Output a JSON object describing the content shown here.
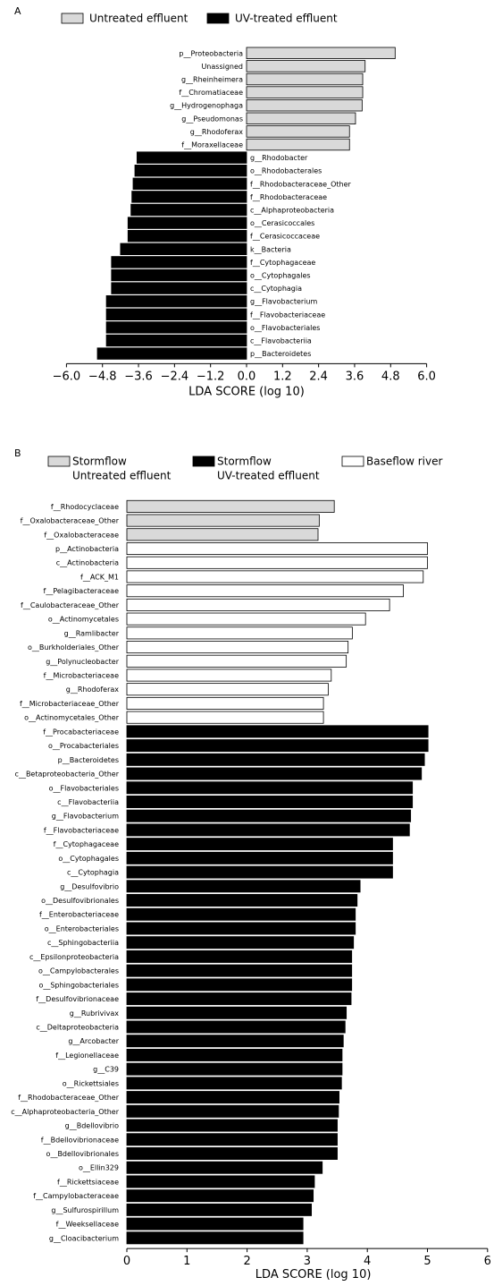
{
  "colors": {
    "untreated": "#d9d9d9",
    "uv": "#000000",
    "baseflow": "#ffffff",
    "stroke": "#000000"
  },
  "chart_data": [
    {
      "panel": "A",
      "type": "bar",
      "orientation": "horizontal",
      "xlabel": "LDA SCORE (log 10)",
      "xlim": [
        -6.0,
        6.0
      ],
      "xticks": [
        "−6.0",
        "−4.8",
        "−3.6",
        "−2.4",
        "−1.2",
        "0.0",
        "1.2",
        "2.4",
        "3.6",
        "4.8",
        "6.0"
      ],
      "legend": [
        {
          "name": "Untreated effluent",
          "group": "untreated"
        },
        {
          "name": "UV-treated effluent",
          "group": "uv"
        }
      ],
      "bars": [
        {
          "label": "p__Proteobacteria",
          "value": 4.95,
          "group": "untreated"
        },
        {
          "label": "Unassigned",
          "value": 3.95,
          "group": "untreated"
        },
        {
          "label": "g__Rheinheimera",
          "value": 3.87,
          "group": "untreated"
        },
        {
          "label": "f__Chromatiaceae",
          "value": 3.87,
          "group": "untreated"
        },
        {
          "label": "g__Hydrogenophaga",
          "value": 3.85,
          "group": "untreated"
        },
        {
          "label": "g__Pseudomonas",
          "value": 3.63,
          "group": "untreated"
        },
        {
          "label": "g__Rhodoferax",
          "value": 3.43,
          "group": "untreated"
        },
        {
          "label": "f__Moraxellaceae",
          "value": 3.43,
          "group": "untreated"
        },
        {
          "label": "g__Rhodobacter",
          "value": -3.65,
          "group": "uv"
        },
        {
          "label": "o__Rhodobacterales",
          "value": -3.72,
          "group": "uv"
        },
        {
          "label": "f__Rhodobacteraceae_Other",
          "value": -3.78,
          "group": "uv"
        },
        {
          "label": "f__Rhodobacteraceae",
          "value": -3.82,
          "group": "uv"
        },
        {
          "label": "c__Alphaproteobacteria",
          "value": -3.85,
          "group": "uv"
        },
        {
          "label": "o__Cerasicoccales",
          "value": -3.95,
          "group": "uv"
        },
        {
          "label": "f__Cerasicoccaceae",
          "value": -3.95,
          "group": "uv"
        },
        {
          "label": "k__Bacteria",
          "value": -4.2,
          "group": "uv"
        },
        {
          "label": "f__Cytophagaceae",
          "value": -4.5,
          "group": "uv"
        },
        {
          "label": "o__Cytophagales",
          "value": -4.5,
          "group": "uv"
        },
        {
          "label": "c__Cytophagia",
          "value": -4.5,
          "group": "uv"
        },
        {
          "label": "g__Flavobacterium",
          "value": -4.67,
          "group": "uv"
        },
        {
          "label": "f__Flavobacteriaceae",
          "value": -4.67,
          "group": "uv"
        },
        {
          "label": "o__Flavobacteriales",
          "value": -4.67,
          "group": "uv"
        },
        {
          "label": "c__Flavobacteriia",
          "value": -4.67,
          "group": "uv"
        },
        {
          "label": "p__Bacteroidetes",
          "value": -4.97,
          "group": "uv"
        }
      ]
    },
    {
      "panel": "B",
      "type": "bar",
      "orientation": "horizontal",
      "xlabel": "LDA SCORE (log 10)",
      "xlim": [
        0,
        6
      ],
      "xticks": [
        "0",
        "1",
        "2",
        "3",
        "4",
        "5",
        "6"
      ],
      "legend": [
        {
          "name": "Stormflow",
          "name2": "Untreated effluent",
          "group": "untreated"
        },
        {
          "name": "Stormflow",
          "name2": "UV-treated effluent",
          "group": "uv"
        },
        {
          "name": "Baseflow river",
          "name2": "",
          "group": "baseflow"
        }
      ],
      "bars": [
        {
          "label": "f__Rhodocyclaceae",
          "value": 3.45,
          "group": "untreated"
        },
        {
          "label": "f__Oxalobacteraceae_Other",
          "value": 3.2,
          "group": "untreated"
        },
        {
          "label": "f__Oxalobacteraceae",
          "value": 3.18,
          "group": "untreated"
        },
        {
          "label": "p__Actinobacteria",
          "value": 5.0,
          "group": "baseflow"
        },
        {
          "label": "c__Actinobacteria",
          "value": 5.0,
          "group": "baseflow"
        },
        {
          "label": "f__ACK_M1",
          "value": 4.93,
          "group": "baseflow"
        },
        {
          "label": "f__Pelagibacteraceae",
          "value": 4.6,
          "group": "baseflow"
        },
        {
          "label": "f__Caulobacteraceae_Other",
          "value": 4.37,
          "group": "baseflow"
        },
        {
          "label": "o__Actinomycetales",
          "value": 3.97,
          "group": "baseflow"
        },
        {
          "label": "g__Ramlibacter",
          "value": 3.75,
          "group": "baseflow"
        },
        {
          "label": "o__Burkholderiales_Other",
          "value": 3.68,
          "group": "baseflow"
        },
        {
          "label": "g__Polynucleobacter",
          "value": 3.65,
          "group": "baseflow"
        },
        {
          "label": "f__Microbacteriaceae",
          "value": 3.4,
          "group": "baseflow"
        },
        {
          "label": "g__Rhodoferax",
          "value": 3.35,
          "group": "baseflow"
        },
        {
          "label": "f__Microbacteriaceae_Other",
          "value": 3.27,
          "group": "baseflow"
        },
        {
          "label": "o__Actinomycetales_Other",
          "value": 3.27,
          "group": "baseflow"
        },
        {
          "label": "f__Procabacteriaceae",
          "value": 5.01,
          "group": "uv"
        },
        {
          "label": "o__Procabacteriales",
          "value": 5.01,
          "group": "uv"
        },
        {
          "label": "p__Bacteroidetes",
          "value": 4.95,
          "group": "uv"
        },
        {
          "label": "c__Betaproteobacteria_Other",
          "value": 4.9,
          "group": "uv"
        },
        {
          "label": "o__Flavobacteriales",
          "value": 4.75,
          "group": "uv"
        },
        {
          "label": "c__Flavobacteriia",
          "value": 4.75,
          "group": "uv"
        },
        {
          "label": "g__Flavobacterium",
          "value": 4.72,
          "group": "uv"
        },
        {
          "label": "f__Flavobacteriaceae",
          "value": 4.7,
          "group": "uv"
        },
        {
          "label": "f__Cytophagaceae",
          "value": 4.42,
          "group": "uv"
        },
        {
          "label": "o__Cytophagales",
          "value": 4.42,
          "group": "uv"
        },
        {
          "label": "c__Cytophagia",
          "value": 4.42,
          "group": "uv"
        },
        {
          "label": "g__Desulfovibrio",
          "value": 3.88,
          "group": "uv"
        },
        {
          "label": "o__Desulfovibrionales",
          "value": 3.83,
          "group": "uv"
        },
        {
          "label": "f__Enterobacteriaceae",
          "value": 3.8,
          "group": "uv"
        },
        {
          "label": "o__Enterobacteriales",
          "value": 3.8,
          "group": "uv"
        },
        {
          "label": "c__Sphingobacteriia",
          "value": 3.77,
          "group": "uv"
        },
        {
          "label": "c__Epsilonproteobacteria",
          "value": 3.74,
          "group": "uv"
        },
        {
          "label": "o__Campylobacterales",
          "value": 3.74,
          "group": "uv"
        },
        {
          "label": "o__Sphingobacteriales",
          "value": 3.74,
          "group": "uv"
        },
        {
          "label": "f__Desulfovibrionaceae",
          "value": 3.73,
          "group": "uv"
        },
        {
          "label": "g__Rubrivivax",
          "value": 3.65,
          "group": "uv"
        },
        {
          "label": "c__Deltaproteobacteria",
          "value": 3.63,
          "group": "uv"
        },
        {
          "label": "g__Arcobacter",
          "value": 3.6,
          "group": "uv"
        },
        {
          "label": "f__Legionellaceae",
          "value": 3.58,
          "group": "uv"
        },
        {
          "label": "g__C39",
          "value": 3.58,
          "group": "uv"
        },
        {
          "label": "o__Rickettsiales",
          "value": 3.57,
          "group": "uv"
        },
        {
          "label": "f__Rhodobacteraceae_Other",
          "value": 3.53,
          "group": "uv"
        },
        {
          "label": "c__Alphaproteobacteria_Other",
          "value": 3.52,
          "group": "uv"
        },
        {
          "label": "g__Bdellovibrio",
          "value": 3.5,
          "group": "uv"
        },
        {
          "label": "f__Bdellovibrionaceae",
          "value": 3.5,
          "group": "uv"
        },
        {
          "label": "o__Bdellovibrionales",
          "value": 3.5,
          "group": "uv"
        },
        {
          "label": "o__Ellin329",
          "value": 3.25,
          "group": "uv"
        },
        {
          "label": "f__Rickettsiaceae",
          "value": 3.12,
          "group": "uv"
        },
        {
          "label": "f__Campylobacteraceae",
          "value": 3.1,
          "group": "uv"
        },
        {
          "label": "g__Sulfurospirillum",
          "value": 3.07,
          "group": "uv"
        },
        {
          "label": "f__Weeksellaceae",
          "value": 2.93,
          "group": "uv"
        },
        {
          "label": "g__Cloacibacterium",
          "value": 2.93,
          "group": "uv"
        }
      ]
    }
  ]
}
